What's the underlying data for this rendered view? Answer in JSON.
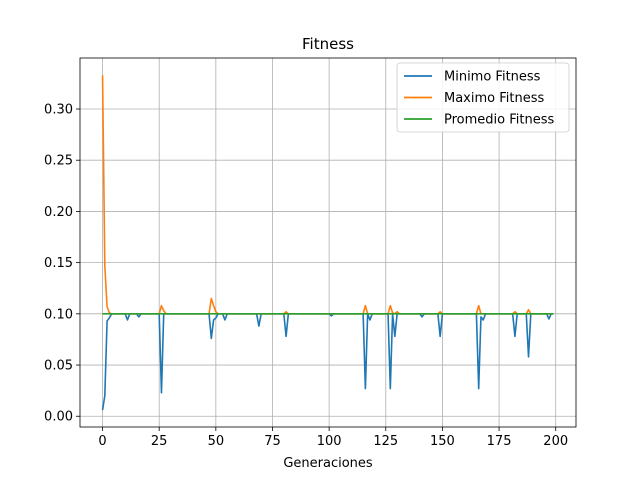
{
  "chart_data": {
    "type": "line",
    "title": "Fitness",
    "xlabel": "Generaciones",
    "ylabel": "",
    "xlim": [
      -9.95,
      208.95
    ],
    "ylim": [
      -0.0105,
      0.3498
    ],
    "xticks": [
      0,
      25,
      50,
      75,
      100,
      125,
      150,
      175,
      200
    ],
    "yticks": [
      0.0,
      0.05,
      0.1,
      0.15,
      0.2,
      0.25,
      0.3
    ],
    "ytick_labels": [
      "0.00",
      "0.05",
      "0.10",
      "0.15",
      "0.20",
      "0.25",
      "0.30"
    ],
    "grid": true,
    "legend_position": "top-right",
    "series": [
      {
        "name": "Minimo Fitness",
        "color": "#1f77b4",
        "points": [
          [
            0,
            0.006
          ],
          [
            1,
            0.02
          ],
          [
            2,
            0.093
          ],
          [
            3,
            0.096
          ],
          [
            4,
            0.1
          ],
          [
            8,
            0.1
          ],
          [
            10,
            0.1
          ],
          [
            11,
            0.094
          ],
          [
            12,
            0.1
          ],
          [
            15,
            0.1
          ],
          [
            16,
            0.097
          ],
          [
            17,
            0.1
          ],
          [
            25,
            0.1
          ],
          [
            26,
            0.023
          ],
          [
            27,
            0.1
          ],
          [
            47,
            0.1
          ],
          [
            48,
            0.076
          ],
          [
            49,
            0.094
          ],
          [
            50,
            0.096
          ],
          [
            51,
            0.1
          ],
          [
            53,
            0.1
          ],
          [
            54,
            0.094
          ],
          [
            55,
            0.1
          ],
          [
            68,
            0.1
          ],
          [
            69,
            0.088
          ],
          [
            70,
            0.1
          ],
          [
            80,
            0.1
          ],
          [
            81,
            0.078
          ],
          [
            82,
            0.1
          ],
          [
            100,
            0.1
          ],
          [
            101,
            0.098
          ],
          [
            102,
            0.1
          ],
          [
            115,
            0.1
          ],
          [
            116,
            0.027
          ],
          [
            117,
            0.1
          ],
          [
            118,
            0.094
          ],
          [
            119,
            0.1
          ],
          [
            126,
            0.1
          ],
          [
            127,
            0.027
          ],
          [
            128,
            0.1
          ],
          [
            129,
            0.078
          ],
          [
            130,
            0.1
          ],
          [
            140,
            0.1
          ],
          [
            141,
            0.097
          ],
          [
            142,
            0.1
          ],
          [
            148,
            0.1
          ],
          [
            149,
            0.078
          ],
          [
            150,
            0.1
          ],
          [
            165,
            0.1
          ],
          [
            166,
            0.027
          ],
          [
            167,
            0.097
          ],
          [
            168,
            0.094
          ],
          [
            169,
            0.1
          ],
          [
            181,
            0.1
          ],
          [
            182,
            0.078
          ],
          [
            183,
            0.1
          ],
          [
            187,
            0.1
          ],
          [
            188,
            0.058
          ],
          [
            189,
            0.1
          ],
          [
            196,
            0.1
          ],
          [
            197,
            0.095
          ],
          [
            198,
            0.1
          ],
          [
            199,
            0.1
          ]
        ]
      },
      {
        "name": "Maximo Fitness",
        "color": "#ff7f0e",
        "points": [
          [
            0,
            0.333
          ],
          [
            1,
            0.147
          ],
          [
            2,
            0.107
          ],
          [
            3,
            0.101
          ],
          [
            4,
            0.1
          ],
          [
            25,
            0.1
          ],
          [
            26,
            0.108
          ],
          [
            27,
            0.103
          ],
          [
            28,
            0.1
          ],
          [
            47,
            0.1
          ],
          [
            48,
            0.115
          ],
          [
            49,
            0.108
          ],
          [
            50,
            0.102
          ],
          [
            51,
            0.1
          ],
          [
            80,
            0.1
          ],
          [
            81,
            0.102
          ],
          [
            82,
            0.1
          ],
          [
            115,
            0.1
          ],
          [
            116,
            0.108
          ],
          [
            117,
            0.1
          ],
          [
            126,
            0.1
          ],
          [
            127,
            0.108
          ],
          [
            128,
            0.101
          ],
          [
            129,
            0.1
          ],
          [
            130,
            0.102
          ],
          [
            131,
            0.1
          ],
          [
            148,
            0.1
          ],
          [
            149,
            0.102
          ],
          [
            150,
            0.1
          ],
          [
            165,
            0.1
          ],
          [
            166,
            0.108
          ],
          [
            167,
            0.1
          ],
          [
            181,
            0.1
          ],
          [
            182,
            0.102
          ],
          [
            183,
            0.1
          ],
          [
            187,
            0.1
          ],
          [
            188,
            0.104
          ],
          [
            189,
            0.1
          ],
          [
            199,
            0.1
          ]
        ]
      },
      {
        "name": "Promedio Fitness",
        "color": "#2ca02c",
        "points": [
          [
            0,
            0.1
          ],
          [
            199,
            0.1
          ]
        ]
      }
    ]
  }
}
